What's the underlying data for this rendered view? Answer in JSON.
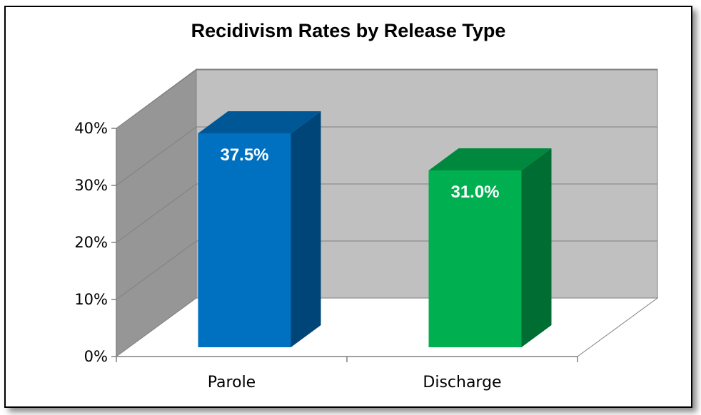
{
  "chart_data": {
    "type": "bar",
    "title": "Recidivism Rates by Release Type",
    "xlabel": "",
    "ylabel": "",
    "categories": [
      "Parole",
      "Discharge"
    ],
    "values": [
      37.5,
      31.0
    ],
    "data_labels": [
      "37.5%",
      "31.0%"
    ],
    "colors": [
      "#0070c0",
      "#00b050"
    ],
    "ylim": [
      0,
      40
    ],
    "yticks": [
      0,
      10,
      20,
      30,
      40
    ],
    "ytick_labels": [
      "0%",
      "10%",
      "20%",
      "30%",
      "40%"
    ],
    "grid": true,
    "legend": "none",
    "style": "3d-column"
  }
}
